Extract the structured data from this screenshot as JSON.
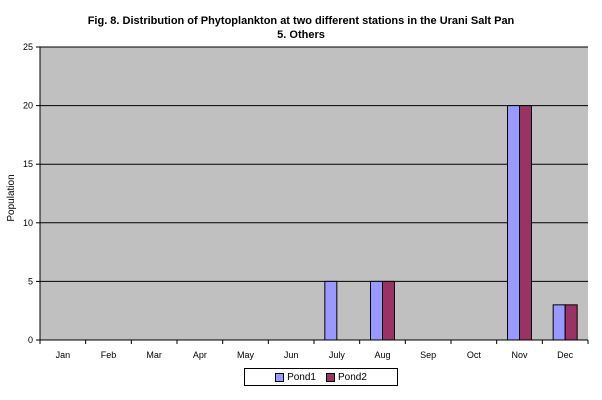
{
  "chart_data": {
    "type": "bar",
    "title": "Fig. 8. Distribution of Phytoplankton at two different stations in the Urani Salt Pan",
    "subtitle": "5. Others",
    "xlabel": "",
    "ylabel": "Population",
    "ylim": [
      0,
      25
    ],
    "yticks": [
      0,
      5,
      10,
      15,
      20,
      25
    ],
    "grid": true,
    "legend_position": "bottom",
    "categories": [
      "Jan",
      "Feb",
      "Mar",
      "Apr",
      "May",
      "Jun",
      "July",
      "Aug",
      "Sep",
      "Oct",
      "Nov",
      "Dec"
    ],
    "series": [
      {
        "name": "Pond1",
        "color": "#9999ff",
        "values": [
          0,
          0,
          0,
          0,
          0,
          0,
          5,
          5,
          0,
          0,
          20,
          3
        ]
      },
      {
        "name": "Pond2",
        "color": "#993366",
        "values": [
          0,
          0,
          0,
          0,
          0,
          0,
          0,
          5,
          0,
          0,
          20,
          3
        ]
      }
    ],
    "plot_background": "#c0c0c0"
  }
}
